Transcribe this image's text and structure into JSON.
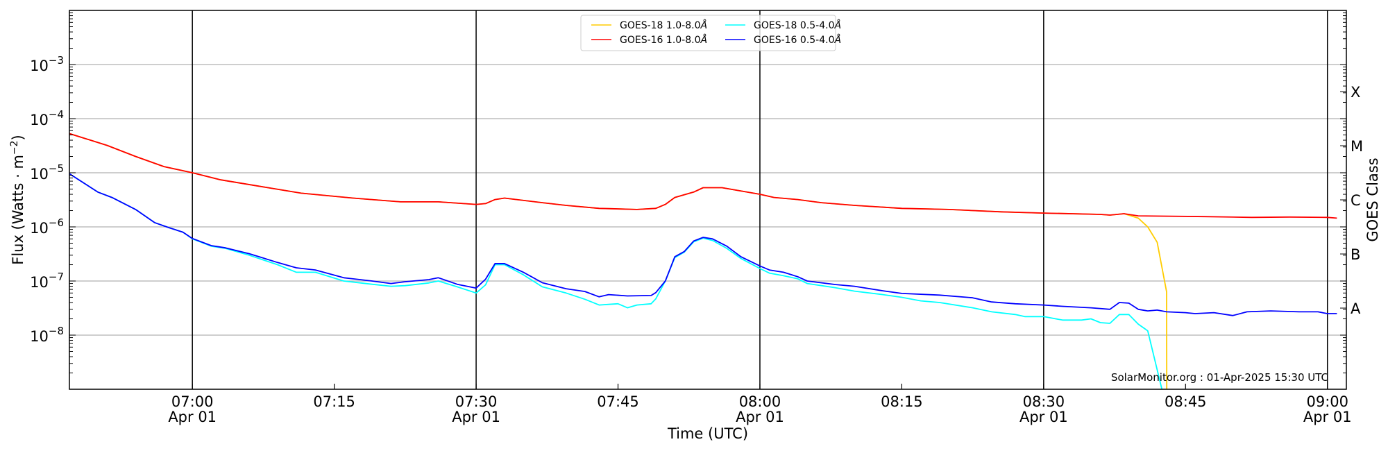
{
  "chart_data": {
    "type": "line",
    "title": "",
    "xlabel": "Time (UTC)",
    "ylabel": "Flux (Watts · m",
    "ylabel_sup": "−2",
    "ylabel_end": ")",
    "y2label": "GOES Class",
    "yscale": "log",
    "ylim": [
      1e-09,
      0.01
    ],
    "xlim": [
      "06:47:00",
      "09:02:00"
    ],
    "date": "Apr 01",
    "yticks": [
      {
        "value": 0.001,
        "base": "10",
        "exp": "−3"
      },
      {
        "value": 0.0001,
        "base": "10",
        "exp": "−4"
      },
      {
        "value": 1e-05,
        "base": "10",
        "exp": "−5"
      },
      {
        "value": 1e-06,
        "base": "10",
        "exp": "−6"
      },
      {
        "value": 1e-07,
        "base": "10",
        "exp": "−7"
      },
      {
        "value": 1e-08,
        "base": "10",
        "exp": "−8"
      }
    ],
    "xticks": [
      {
        "time": "07:00:00",
        "label": "07:00",
        "date": "Apr 01"
      },
      {
        "time": "07:15:00",
        "label": "07:15"
      },
      {
        "time": "07:30:00",
        "label": "07:30",
        "date": "Apr 01"
      },
      {
        "time": "07:45:00",
        "label": "07:45"
      },
      {
        "time": "08:00:00",
        "label": "08:00",
        "date": "Apr 01"
      },
      {
        "time": "08:15:00",
        "label": "08:15"
      },
      {
        "time": "08:30:00",
        "label": "08:30",
        "date": "Apr 01"
      },
      {
        "time": "08:45:00",
        "label": "08:45"
      },
      {
        "time": "09:00:00",
        "label": "09:00",
        "date": "Apr 01"
      }
    ],
    "vlines": [
      "07:00:00",
      "07:30:00",
      "08:00:00",
      "08:30:00",
      "09:00:00"
    ],
    "goes_classes": [
      {
        "label": "X",
        "value": 0.000316
      },
      {
        "label": "M",
        "value": 3.16e-05
      },
      {
        "label": "C",
        "value": 3.16e-06
      },
      {
        "label": "B",
        "value": 3.16e-07
      },
      {
        "label": "A",
        "value": 3.16e-08
      }
    ],
    "grid": "horizontal",
    "legend_position": "top-center",
    "annotation": "SolarMonitor.org : 01-Apr-2025 15:30 UTC",
    "series": [
      {
        "name": "GOES-18 1.0-8.0",
        "unit": "Å",
        "color": "#ffcc00",
        "legend_row": 0,
        "legend_col": 0,
        "points": [
          [
            "06:47:00",
            5.3e-05
          ],
          [
            "06:51:00",
            3.2e-05
          ],
          [
            "06:54:00",
            2e-05
          ],
          [
            "06:57:00",
            1.3e-05
          ],
          [
            "07:00:00",
            1e-05
          ],
          [
            "07:03:00",
            7.4e-06
          ],
          [
            "07:08:00",
            5.3e-06
          ],
          [
            "07:11:30",
            4.2e-06
          ],
          [
            "07:17:00",
            3.4e-06
          ],
          [
            "07:22:00",
            2.9e-06
          ],
          [
            "07:26:00",
            2.9e-06
          ],
          [
            "07:30:00",
            2.6e-06
          ],
          [
            "07:31:00",
            2.7e-06
          ],
          [
            "07:32:00",
            3.2e-06
          ],
          [
            "07:33:00",
            3.4e-06
          ],
          [
            "07:37:00",
            2.8e-06
          ],
          [
            "07:39:30",
            2.5e-06
          ],
          [
            "07:43:00",
            2.2e-06
          ],
          [
            "07:47:00",
            2.1e-06
          ],
          [
            "07:49:00",
            2.2e-06
          ],
          [
            "07:50:00",
            2.6e-06
          ],
          [
            "07:51:00",
            3.5e-06
          ],
          [
            "07:53:00",
            4.4e-06
          ],
          [
            "07:54:00",
            5.3e-06
          ],
          [
            "07:56:00",
            5.3e-06
          ],
          [
            "07:58:00",
            4.6e-06
          ],
          [
            "08:00:00",
            4e-06
          ],
          [
            "08:01:30",
            3.5e-06
          ],
          [
            "08:04:00",
            3.2e-06
          ],
          [
            "08:06:30",
            2.8e-06
          ],
          [
            "08:10:00",
            2.5e-06
          ],
          [
            "08:15:00",
            2.2e-06
          ],
          [
            "08:20:00",
            2.1e-06
          ],
          [
            "08:25:30",
            1.9e-06
          ],
          [
            "08:30:00",
            1.8e-06
          ],
          [
            "08:36:00",
            1.7e-06
          ],
          [
            "08:37:00",
            1.65e-06
          ],
          [
            "08:38:30",
            1.75e-06
          ],
          [
            "08:40:00",
            1.45e-06
          ],
          [
            "08:41:00",
            1e-06
          ],
          [
            "08:42:00",
            5.2e-07
          ],
          [
            "08:43:00",
            6.3e-08
          ],
          [
            "08:43:01",
            1e-10
          ]
        ]
      },
      {
        "name": "GOES-18 0.5-4.0",
        "unit": "Å",
        "color": "#00ffff",
        "legend_row": 0,
        "legend_col": 1,
        "points": [
          [
            "06:47:00",
            9.6e-06
          ],
          [
            "06:50:00",
            4.4e-06
          ],
          [
            "06:51:30",
            3.5e-06
          ],
          [
            "06:54:00",
            2.1e-06
          ],
          [
            "06:56:00",
            1.2e-06
          ],
          [
            "06:57:30",
            9.7e-07
          ],
          [
            "06:59:00",
            8e-07
          ],
          [
            "07:00:00",
            6e-07
          ],
          [
            "07:02:00",
            4.4e-07
          ],
          [
            "07:03:30",
            4e-07
          ],
          [
            "07:06:00",
            3e-07
          ],
          [
            "07:09:00",
            2e-07
          ],
          [
            "07:11:00",
            1.45e-07
          ],
          [
            "07:13:00",
            1.45e-07
          ],
          [
            "07:16:00",
            1e-07
          ],
          [
            "07:19:00",
            8.7e-08
          ],
          [
            "07:21:00",
            8e-08
          ],
          [
            "07:22:30",
            8.2e-08
          ],
          [
            "07:25:00",
            9.2e-08
          ],
          [
            "07:26:00",
            1e-07
          ],
          [
            "07:28:00",
            7.8e-08
          ],
          [
            "07:30:00",
            6e-08
          ],
          [
            "07:31:00",
            8.5e-08
          ],
          [
            "07:32:00",
            2e-07
          ],
          [
            "07:33:00",
            2e-07
          ],
          [
            "07:35:00",
            1.3e-07
          ],
          [
            "07:37:00",
            7.8e-08
          ],
          [
            "07:39:30",
            6e-08
          ],
          [
            "07:41:30",
            4.6e-08
          ],
          [
            "07:43:00",
            3.6e-08
          ],
          [
            "07:44:00",
            3.7e-08
          ],
          [
            "07:45:00",
            3.8e-08
          ],
          [
            "07:46:00",
            3.2e-08
          ],
          [
            "07:47:00",
            3.6e-08
          ],
          [
            "07:48:30",
            3.8e-08
          ],
          [
            "07:49:00",
            4.7e-08
          ],
          [
            "07:50:00",
            1e-07
          ],
          [
            "07:51:00",
            2.7e-07
          ],
          [
            "07:52:00",
            3.4e-07
          ],
          [
            "07:53:00",
            5.3e-07
          ],
          [
            "07:54:00",
            6.2e-07
          ],
          [
            "07:55:00",
            5.6e-07
          ],
          [
            "07:56:30",
            4e-07
          ],
          [
            "07:58:00",
            2.6e-07
          ],
          [
            "08:00:00",
            1.7e-07
          ],
          [
            "08:01:00",
            1.4e-07
          ],
          [
            "08:02:30",
            1.25e-07
          ],
          [
            "08:04:00",
            1.1e-07
          ],
          [
            "08:05:00",
            9e-08
          ],
          [
            "08:08:00",
            7.5e-08
          ],
          [
            "08:10:00",
            6.5e-08
          ],
          [
            "08:13:00",
            5.6e-08
          ],
          [
            "08:15:00",
            5e-08
          ],
          [
            "08:17:00",
            4.3e-08
          ],
          [
            "08:19:00",
            4e-08
          ],
          [
            "08:22:30",
            3.2e-08
          ],
          [
            "08:24:30",
            2.7e-08
          ],
          [
            "08:27:00",
            2.4e-08
          ],
          [
            "08:28:00",
            2.2e-08
          ],
          [
            "08:30:00",
            2.2e-08
          ],
          [
            "08:32:00",
            1.9e-08
          ],
          [
            "08:34:00",
            1.9e-08
          ],
          [
            "08:35:00",
            2e-08
          ],
          [
            "08:36:00",
            1.7e-08
          ],
          [
            "08:37:00",
            1.65e-08
          ],
          [
            "08:38:00",
            2.4e-08
          ],
          [
            "08:39:00",
            2.4e-08
          ],
          [
            "08:40:00",
            1.6e-08
          ],
          [
            "08:41:00",
            1.2e-08
          ],
          [
            "08:42:30",
            1e-09
          ]
        ]
      },
      {
        "name": "GOES-16 1.0-8.0",
        "unit": "Å",
        "color": "#ff0000",
        "legend_row": 1,
        "legend_col": 0,
        "points": [
          [
            "06:47:00",
            5.3e-05
          ],
          [
            "06:51:00",
            3.2e-05
          ],
          [
            "06:54:00",
            2e-05
          ],
          [
            "06:57:00",
            1.3e-05
          ],
          [
            "07:00:00",
            1e-05
          ],
          [
            "07:03:00",
            7.4e-06
          ],
          [
            "07:08:00",
            5.3e-06
          ],
          [
            "07:11:30",
            4.2e-06
          ],
          [
            "07:17:00",
            3.4e-06
          ],
          [
            "07:22:00",
            2.9e-06
          ],
          [
            "07:26:00",
            2.9e-06
          ],
          [
            "07:30:00",
            2.6e-06
          ],
          [
            "07:31:00",
            2.7e-06
          ],
          [
            "07:32:00",
            3.2e-06
          ],
          [
            "07:33:00",
            3.4e-06
          ],
          [
            "07:37:00",
            2.8e-06
          ],
          [
            "07:39:30",
            2.5e-06
          ],
          [
            "07:43:00",
            2.2e-06
          ],
          [
            "07:47:00",
            2.1e-06
          ],
          [
            "07:49:00",
            2.2e-06
          ],
          [
            "07:50:00",
            2.6e-06
          ],
          [
            "07:51:00",
            3.5e-06
          ],
          [
            "07:53:00",
            4.4e-06
          ],
          [
            "07:54:00",
            5.3e-06
          ],
          [
            "07:56:00",
            5.3e-06
          ],
          [
            "07:58:00",
            4.6e-06
          ],
          [
            "08:00:00",
            4e-06
          ],
          [
            "08:01:30",
            3.5e-06
          ],
          [
            "08:04:00",
            3.2e-06
          ],
          [
            "08:06:30",
            2.8e-06
          ],
          [
            "08:10:00",
            2.5e-06
          ],
          [
            "08:15:00",
            2.2e-06
          ],
          [
            "08:20:00",
            2.1e-06
          ],
          [
            "08:25:30",
            1.9e-06
          ],
          [
            "08:30:00",
            1.8e-06
          ],
          [
            "08:36:00",
            1.7e-06
          ],
          [
            "08:37:00",
            1.65e-06
          ],
          [
            "08:38:30",
            1.75e-06
          ],
          [
            "08:40:00",
            1.6e-06
          ],
          [
            "08:47:00",
            1.55e-06
          ],
          [
            "08:52:00",
            1.5e-06
          ],
          [
            "08:56:00",
            1.52e-06
          ],
          [
            "09:00:00",
            1.5e-06
          ],
          [
            "09:01:00",
            1.45e-06
          ]
        ]
      },
      {
        "name": "GOES-16 0.5-4.0",
        "unit": "Å",
        "color": "#0000ff",
        "legend_row": 1,
        "legend_col": 1,
        "points": [
          [
            "06:47:00",
            9.6e-06
          ],
          [
            "06:50:00",
            4.4e-06
          ],
          [
            "06:51:30",
            3.5e-06
          ],
          [
            "06:54:00",
            2.1e-06
          ],
          [
            "06:56:00",
            1.2e-06
          ],
          [
            "06:57:30",
            9.7e-07
          ],
          [
            "06:59:00",
            8e-07
          ],
          [
            "07:00:00",
            6.1e-07
          ],
          [
            "07:02:00",
            4.5e-07
          ],
          [
            "07:03:30",
            4.1e-07
          ],
          [
            "07:06:00",
            3.2e-07
          ],
          [
            "07:09:00",
            2.2e-07
          ],
          [
            "07:11:00",
            1.75e-07
          ],
          [
            "07:13:00",
            1.6e-07
          ],
          [
            "07:16:00",
            1.15e-07
          ],
          [
            "07:19:00",
            1e-07
          ],
          [
            "07:21:00",
            9e-08
          ],
          [
            "07:22:30",
            9.7e-08
          ],
          [
            "07:25:00",
            1.06e-07
          ],
          [
            "07:26:00",
            1.15e-07
          ],
          [
            "07:28:00",
            8.7e-08
          ],
          [
            "07:30:00",
            7.4e-08
          ],
          [
            "07:31:00",
            1.08e-07
          ],
          [
            "07:32:00",
            2.1e-07
          ],
          [
            "07:33:00",
            2.1e-07
          ],
          [
            "07:35:00",
            1.45e-07
          ],
          [
            "07:37:00",
            9.3e-08
          ],
          [
            "07:39:30",
            7.2e-08
          ],
          [
            "07:41:30",
            6.4e-08
          ],
          [
            "07:43:00",
            5.1e-08
          ],
          [
            "07:44:00",
            5.6e-08
          ],
          [
            "07:46:00",
            5.3e-08
          ],
          [
            "07:48:30",
            5.4e-08
          ],
          [
            "07:49:00",
            6.1e-08
          ],
          [
            "07:50:00",
            1e-07
          ],
          [
            "07:51:00",
            2.8e-07
          ],
          [
            "07:52:00",
            3.5e-07
          ],
          [
            "07:53:00",
            5.5e-07
          ],
          [
            "07:54:00",
            6.4e-07
          ],
          [
            "07:55:00",
            6e-07
          ],
          [
            "07:56:30",
            4.4e-07
          ],
          [
            "07:58:00",
            2.8e-07
          ],
          [
            "08:00:00",
            1.9e-07
          ],
          [
            "08:01:00",
            1.6e-07
          ],
          [
            "08:02:30",
            1.45e-07
          ],
          [
            "08:04:00",
            1.2e-07
          ],
          [
            "08:05:00",
            1e-07
          ],
          [
            "08:08:00",
            8.6e-08
          ],
          [
            "08:10:00",
            8e-08
          ],
          [
            "08:13:00",
            6.6e-08
          ],
          [
            "08:15:00",
            5.9e-08
          ],
          [
            "08:19:00",
            5.5e-08
          ],
          [
            "08:22:30",
            4.9e-08
          ],
          [
            "08:24:30",
            4.1e-08
          ],
          [
            "08:27:00",
            3.8e-08
          ],
          [
            "08:30:00",
            3.6e-08
          ],
          [
            "08:32:00",
            3.4e-08
          ],
          [
            "08:35:00",
            3.2e-08
          ],
          [
            "08:37:00",
            3e-08
          ],
          [
            "08:38:00",
            4e-08
          ],
          [
            "08:39:00",
            3.9e-08
          ],
          [
            "08:40:00",
            3e-08
          ],
          [
            "08:41:00",
            2.8e-08
          ],
          [
            "08:42:00",
            2.9e-08
          ],
          [
            "08:43:00",
            2.7e-08
          ],
          [
            "08:45:00",
            2.6e-08
          ],
          [
            "08:46:00",
            2.5e-08
          ],
          [
            "08:48:00",
            2.6e-08
          ],
          [
            "08:50:00",
            2.3e-08
          ],
          [
            "08:51:30",
            2.7e-08
          ],
          [
            "08:54:00",
            2.8e-08
          ],
          [
            "08:57:00",
            2.7e-08
          ],
          [
            "08:59:00",
            2.7e-08
          ],
          [
            "09:00:00",
            2.5e-08
          ],
          [
            "09:01:00",
            2.5e-08
          ]
        ]
      }
    ]
  }
}
